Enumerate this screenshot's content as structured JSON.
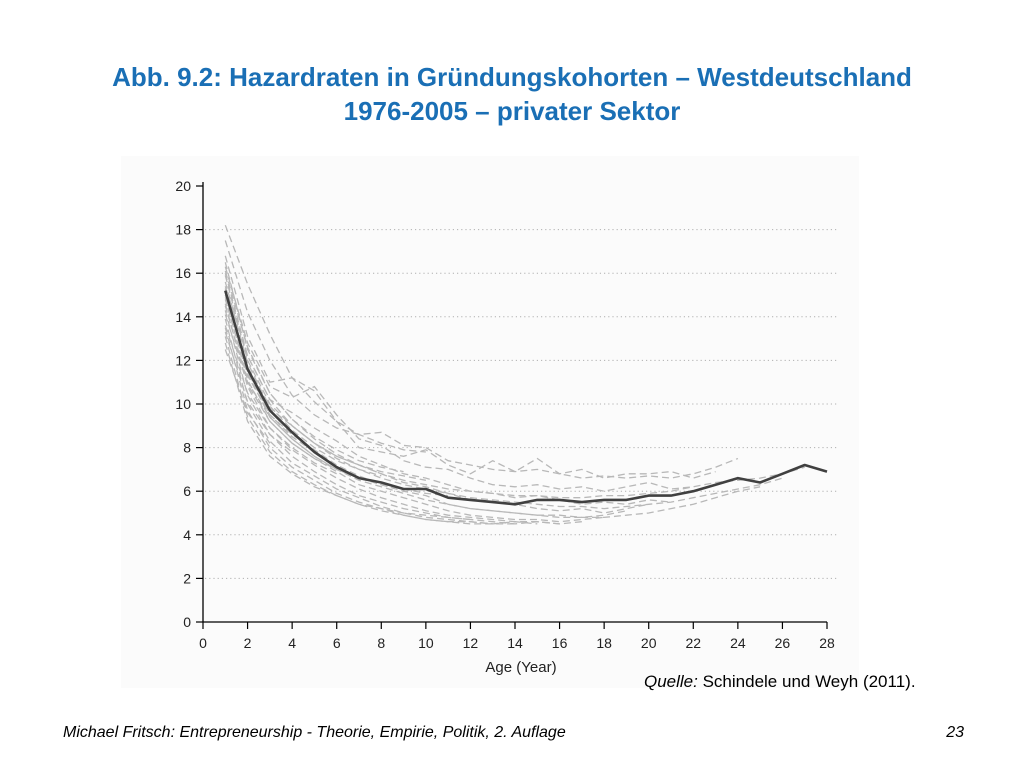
{
  "slide": {
    "title_line1": "Abb. 9.2: Hazardraten in Gründungskohorten – Westdeutschland",
    "title_line2": "1976-2005 – privater Sektor",
    "source_label": "Quelle:",
    "source_text": " Schindele und Weyh (2011).",
    "footer": "Michael Fritsch: Entrepreneurship - Theorie, Empirie, Politik, 2. Auflage",
    "page_number": "23"
  },
  "chart_data": {
    "type": "line",
    "title": "",
    "xlabel": "Age (Year)",
    "ylabel": "",
    "xlim": [
      0,
      28
    ],
    "ylim": [
      0,
      20
    ],
    "x_ticks": [
      0,
      2,
      4,
      6,
      8,
      10,
      12,
      14,
      16,
      18,
      20,
      22,
      24,
      26,
      28
    ],
    "y_ticks": [
      0,
      2,
      4,
      6,
      8,
      10,
      12,
      14,
      16,
      18,
      20
    ],
    "grid": "horizontal dotted",
    "colors": {
      "average": "#404040",
      "cohort": "#b8b8b8",
      "grid": "#b0b0b0"
    },
    "average_series": {
      "x": [
        1,
        2,
        3,
        4,
        5,
        6,
        7,
        8,
        9,
        10,
        11,
        12,
        13,
        14,
        15,
        16,
        17,
        18,
        19,
        20,
        21,
        22,
        23,
        24,
        25,
        26,
        27,
        28
      ],
      "y": [
        15.2,
        11.6,
        9.7,
        8.7,
        7.8,
        7.1,
        6.6,
        6.4,
        6.1,
        6.1,
        5.7,
        5.6,
        5.5,
        5.4,
        5.6,
        5.6,
        5.5,
        5.6,
        5.6,
        5.8,
        5.8,
        6.0,
        6.3,
        6.6,
        6.4,
        6.8,
        7.2,
        6.9
      ]
    },
    "cohort_series": [
      {
        "x": [
          1,
          2,
          3,
          4,
          5,
          6,
          7,
          8,
          9,
          10
        ],
        "y": [
          18.2,
          15.5,
          13.2,
          11.2,
          10.1,
          9.2,
          8.6,
          8.2,
          7.9,
          7.8
        ]
      },
      {
        "x": [
          1,
          2,
          3,
          4,
          5,
          6,
          7,
          8,
          9,
          10,
          11,
          12,
          13,
          14,
          15,
          16,
          17,
          18,
          19,
          20,
          21,
          22,
          23,
          24
        ],
        "y": [
          17.5,
          14.2,
          12.0,
          10.4,
          9.5,
          8.9,
          8.6,
          8.7,
          8.1,
          8.0,
          7.4,
          7.2,
          7.0,
          6.9,
          7.0,
          6.8,
          6.6,
          6.7,
          6.6,
          6.7,
          6.6,
          6.8,
          7.1,
          7.5
        ]
      },
      {
        "x": [
          1,
          2,
          3,
          4,
          5,
          6,
          7,
          8,
          9,
          10,
          11,
          12,
          13,
          14,
          15,
          16,
          17,
          18,
          19,
          20,
          21,
          22,
          23
        ],
        "y": [
          16.8,
          13.1,
          11.0,
          11.2,
          10.6,
          9.2,
          8.0,
          7.8,
          7.6,
          7.9,
          7.2,
          6.8,
          7.4,
          6.9,
          7.5,
          6.8,
          7.0,
          6.6,
          6.8,
          6.8,
          6.9,
          6.6,
          6.9
        ]
      },
      {
        "x": [
          1,
          2,
          3,
          4,
          5,
          6,
          7,
          8,
          9,
          10,
          11,
          12,
          13,
          14,
          15,
          16,
          17,
          18,
          19,
          20,
          21,
          22
        ],
        "y": [
          16.3,
          12.8,
          10.8,
          10.3,
          10.8,
          9.5,
          8.4,
          8.1,
          7.4,
          7.1,
          7.0,
          6.6,
          6.3,
          6.2,
          6.3,
          6.1,
          6.2,
          6.0,
          6.2,
          6.4,
          6.1,
          6.2
        ]
      },
      {
        "x": [
          1,
          2,
          3,
          4,
          5,
          6,
          7,
          8,
          9,
          10,
          11,
          12,
          13,
          14,
          15,
          16,
          17,
          18,
          19,
          20,
          21
        ],
        "y": [
          16.0,
          12.2,
          10.2,
          9.6,
          8.9,
          8.3,
          7.6,
          7.2,
          6.8,
          6.6,
          6.3,
          6.0,
          5.9,
          5.7,
          5.8,
          5.6,
          5.4,
          5.5,
          5.4,
          5.6,
          5.5
        ]
      },
      {
        "x": [
          1,
          2,
          3,
          4,
          5,
          6,
          7,
          8,
          9,
          10,
          11,
          12,
          13,
          14,
          15,
          16,
          17,
          18,
          19,
          20
        ],
        "y": [
          15.6,
          11.9,
          9.8,
          9.0,
          8.2,
          7.6,
          7.2,
          6.8,
          6.4,
          6.2,
          5.9,
          5.6,
          5.5,
          5.4,
          5.2,
          5.1,
          5.2,
          5.0,
          5.2,
          5.4
        ]
      },
      {
        "x": [
          1,
          2,
          3,
          4,
          5,
          6,
          7,
          8,
          9,
          10,
          11,
          12,
          13,
          14,
          15,
          16,
          17,
          18,
          19
        ],
        "y": [
          15.2,
          11.5,
          9.5,
          8.6,
          7.9,
          7.2,
          6.7,
          6.3,
          6.0,
          5.8,
          5.4,
          5.2,
          5.1,
          5.0,
          4.9,
          4.8,
          4.8,
          4.9,
          5.1
        ]
      },
      {
        "x": [
          1,
          2,
          3,
          4,
          5,
          6,
          7,
          8,
          9,
          10,
          11,
          12,
          13,
          14,
          15,
          16,
          17,
          18
        ],
        "y": [
          14.9,
          11.1,
          9.2,
          8.2,
          7.5,
          6.9,
          6.3,
          6.0,
          5.7,
          5.4,
          5.1,
          4.9,
          4.8,
          4.7,
          4.7,
          4.6,
          4.7,
          4.8
        ]
      },
      {
        "x": [
          1,
          2,
          3,
          4,
          5,
          6,
          7,
          8,
          9,
          10,
          11,
          12,
          13,
          14,
          15,
          16,
          17
        ],
        "y": [
          14.6,
          10.8,
          8.9,
          7.9,
          7.2,
          6.6,
          6.1,
          5.7,
          5.4,
          5.1,
          4.9,
          4.8,
          4.7,
          4.6,
          4.6,
          4.5,
          4.6
        ]
      },
      {
        "x": [
          1,
          2,
          3,
          4,
          5,
          6,
          7,
          8,
          9,
          10,
          11,
          12,
          13,
          14,
          15,
          16
        ],
        "y": [
          14.3,
          10.4,
          8.6,
          7.6,
          6.9,
          6.3,
          5.8,
          5.5,
          5.2,
          5.0,
          4.8,
          4.7,
          4.6,
          4.5,
          4.6,
          4.5
        ]
      },
      {
        "x": [
          1,
          2,
          3,
          4,
          5,
          6,
          7,
          8,
          9,
          10,
          11,
          12,
          13,
          14,
          15
        ],
        "y": [
          13.9,
          10.0,
          8.3,
          7.3,
          6.7,
          6.1,
          5.7,
          5.3,
          5.0,
          4.8,
          4.7,
          4.6,
          4.5,
          4.6,
          4.5
        ]
      },
      {
        "x": [
          1,
          2,
          3,
          4,
          5,
          6,
          7,
          8,
          9,
          10,
          11,
          12,
          13,
          14
        ],
        "y": [
          13.5,
          9.7,
          8.0,
          7.1,
          6.5,
          5.9,
          5.5,
          5.2,
          4.9,
          4.7,
          4.6,
          4.5,
          4.5,
          4.5
        ]
      },
      {
        "x": [
          1,
          2,
          3,
          4,
          5,
          6,
          7,
          8,
          9,
          10,
          11,
          12,
          13
        ],
        "y": [
          13.1,
          9.4,
          7.8,
          6.9,
          6.3,
          5.8,
          5.4,
          5.1,
          4.9,
          4.7,
          4.6,
          4.6,
          4.5
        ]
      },
      {
        "x": [
          1,
          2,
          3,
          4,
          5,
          6,
          7,
          8,
          9,
          10,
          11,
          12
        ],
        "y": [
          12.8,
          9.2,
          7.6,
          6.8,
          6.2,
          5.8,
          5.4,
          5.2,
          5.0,
          4.9,
          4.8,
          4.7
        ]
      },
      {
        "x": [
          1,
          2,
          3,
          4,
          5,
          6,
          7,
          8,
          9,
          10,
          11
        ],
        "y": [
          14.5,
          11.0,
          9.4,
          8.4,
          7.6,
          7.0,
          6.6,
          6.3,
          6.1,
          5.9,
          5.8
        ]
      },
      {
        "x": [
          1,
          2,
          3,
          4,
          5,
          6,
          7,
          8,
          9,
          10
        ],
        "y": [
          15.4,
          12.2,
          10.2,
          9.0,
          8.2,
          7.6,
          7.2,
          6.9,
          6.7,
          6.5
        ]
      },
      {
        "x": [
          1,
          2,
          3,
          4,
          5,
          6,
          7,
          8,
          9
        ],
        "y": [
          16.1,
          12.6,
          10.5,
          9.3,
          8.5,
          7.9,
          7.4,
          7.1,
          6.9
        ]
      },
      {
        "x": [
          1,
          2,
          3,
          4,
          5,
          6,
          7,
          8
        ],
        "y": [
          15.0,
          11.7,
          9.9,
          8.8,
          8.0,
          7.4,
          7.0,
          6.7
        ]
      },
      {
        "x": [
          1,
          2,
          3,
          4,
          5,
          6,
          7
        ],
        "y": [
          14.1,
          10.9,
          9.2,
          8.2,
          7.5,
          7.0,
          6.6
        ]
      },
      {
        "x": [
          1,
          2,
          3,
          4,
          5,
          6
        ],
        "y": [
          13.6,
          10.5,
          8.9,
          8.0,
          7.3,
          6.8
        ]
      },
      {
        "x": [
          1,
          2,
          3,
          4,
          5
        ],
        "y": [
          14.8,
          11.3,
          9.5,
          8.5,
          7.8
        ]
      },
      {
        "x": [
          1,
          2,
          3,
          4
        ],
        "y": [
          13.3,
          10.1,
          8.6,
          7.8
        ]
      },
      {
        "x": [
          1,
          2,
          3
        ],
        "y": [
          12.5,
          9.6,
          8.2
        ]
      },
      {
        "x": [
          1,
          2,
          3,
          4,
          5,
          6,
          7,
          8,
          9,
          10,
          11,
          12,
          13,
          14,
          15,
          16,
          17,
          18,
          19,
          20,
          21,
          22,
          23,
          24,
          25,
          26
        ],
        "y": [
          15.9,
          12.0,
          10.0,
          9.0,
          8.2,
          7.5,
          7.0,
          6.6,
          6.3,
          6.1,
          5.9,
          5.7,
          5.6,
          5.5,
          5.4,
          5.3,
          5.3,
          5.2,
          5.3,
          5.4,
          5.5,
          5.7,
          5.9,
          6.1,
          6.3,
          6.6
        ]
      },
      {
        "x": [
          1,
          2,
          3,
          4,
          5,
          6,
          7,
          8,
          9,
          10,
          11,
          12,
          13,
          14,
          15,
          16,
          17,
          18,
          19,
          20,
          21,
          22,
          23,
          24,
          25
        ],
        "y": [
          15.3,
          11.4,
          9.4,
          8.4,
          7.6,
          7.0,
          6.5,
          6.2,
          5.9,
          5.6,
          5.4,
          5.2,
          5.1,
          5.0,
          4.9,
          4.9,
          4.8,
          4.8,
          4.9,
          5.0,
          5.2,
          5.4,
          5.7,
          6.0,
          6.2
        ]
      },
      {
        "x": [
          1,
          2,
          3,
          4,
          5,
          6,
          7,
          8,
          9,
          10,
          11,
          12,
          13,
          14,
          15,
          16,
          17,
          18,
          19,
          20,
          21,
          22,
          23,
          24,
          25,
          26,
          27
        ],
        "y": [
          16.5,
          12.5,
          10.5,
          9.3,
          8.4,
          7.7,
          7.2,
          6.8,
          6.5,
          6.3,
          6.1,
          6.0,
          5.9,
          5.8,
          5.8,
          5.7,
          5.7,
          5.8,
          5.8,
          5.9,
          6.0,
          6.2,
          6.4,
          6.5,
          6.6,
          6.8,
          7.1
        ]
      }
    ]
  }
}
